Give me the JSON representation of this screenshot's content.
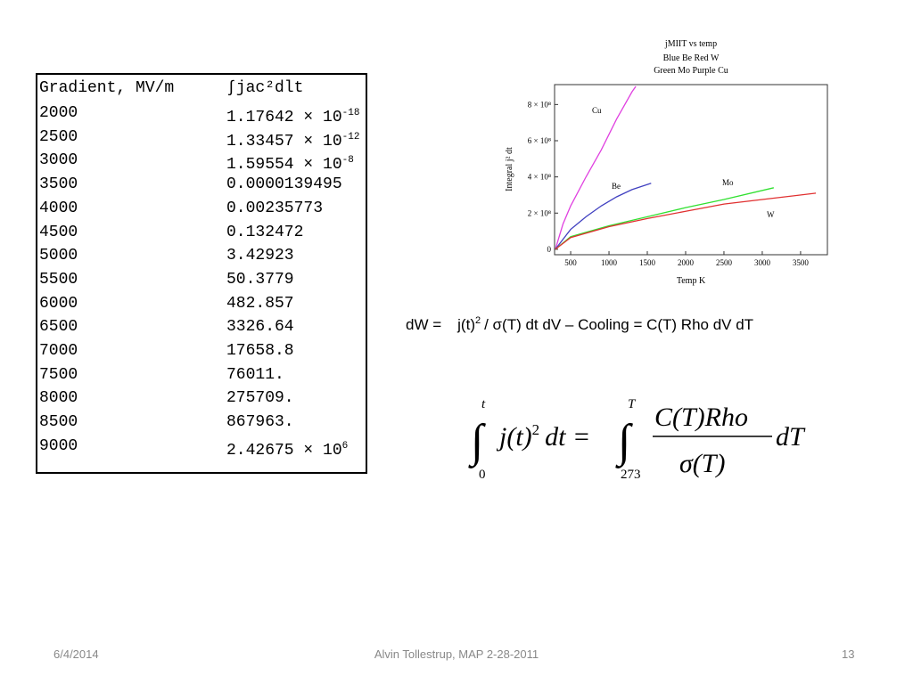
{
  "table": {
    "header": [
      "Gradient, MV/m",
      "∫jac²dlt"
    ],
    "rows": [
      [
        "2000",
        {
          "base": "1.17642 × 10",
          "exp": "-18"
        }
      ],
      [
        "2500",
        {
          "base": "1.33457 × 10",
          "exp": "-12"
        }
      ],
      [
        "3000",
        {
          "base": "1.59554 × 10",
          "exp": "-8"
        }
      ],
      [
        "3500",
        "0.0000139495"
      ],
      [
        "4000",
        "0.00235773"
      ],
      [
        "4500",
        "0.132472"
      ],
      [
        "5000",
        "3.42923"
      ],
      [
        "5500",
        "50.3779"
      ],
      [
        "6000",
        "482.857"
      ],
      [
        "6500",
        "3326.64"
      ],
      [
        "7000",
        "17658.8"
      ],
      [
        "7500",
        "76011."
      ],
      [
        "8000",
        "275709."
      ],
      [
        "8500",
        "867963."
      ],
      [
        "9000",
        {
          "base": "2.42675 × 10",
          "exp": "6"
        }
      ]
    ]
  },
  "chart_data": {
    "type": "line",
    "title": "jMIIT vs temp",
    "subtitle": [
      "Blue  Be    Red   W",
      "Green  Mo   Purple    Cu"
    ],
    "x_label": "Temp K",
    "y_label": "Integral j² dt",
    "xlim": [
      290,
      3850
    ],
    "xticks": [
      500,
      1000,
      1500,
      2000,
      2500,
      3000,
      3500
    ],
    "ylim": [
      -30000000,
      910000000
    ],
    "yticks": [
      0,
      {
        "value": 200000000,
        "label": "2 × 10⁸"
      },
      {
        "value": 400000000,
        "label": "4 × 10⁸"
      },
      {
        "value": 600000000,
        "label": "6 × 10⁸"
      },
      {
        "value": 800000000,
        "label": "8 × 10⁸"
      }
    ],
    "series": [
      {
        "name": "Cu",
        "color": "#e040e0",
        "x": [
          300,
          400,
          500,
          700,
          900,
          1100,
          1300,
          1350
        ],
        "values": [
          0,
          140000000,
          240000000,
          400000000,
          550000000,
          720000000,
          870000000,
          900000000
        ]
      },
      {
        "name": "Be",
        "color": "#4040c0",
        "x": [
          300,
          500,
          700,
          900,
          1100,
          1300,
          1550
        ],
        "values": [
          0,
          110000000,
          180000000,
          240000000,
          290000000,
          330000000,
          365000000
        ]
      },
      {
        "name": "Mo",
        "color": "#30e030",
        "x": [
          300,
          500,
          1000,
          1500,
          2000,
          2500,
          3150
        ],
        "values": [
          0,
          70000000,
          130000000,
          180000000,
          230000000,
          275000000,
          340000000
        ]
      },
      {
        "name": "W",
        "color": "#e03030",
        "x": [
          300,
          500,
          1000,
          1500,
          2000,
          2500,
          3000,
          3700
        ],
        "values": [
          0,
          65000000,
          125000000,
          170000000,
          210000000,
          250000000,
          275000000,
          310000000
        ]
      }
    ]
  },
  "equation1": {
    "lhs": "dW =",
    "j": "j(t)",
    "sup": "2",
    "rest": "/ σ(T) dt  dV – Cooling  =  C(T) Rho dV dT"
  },
  "equation2": {
    "upper1": "t",
    "lower1": "0",
    "integrand": "j(t)",
    "sup": "2",
    "dt": "dt =",
    "upper2": "T",
    "lower2": "273",
    "numerator": "C(T)Rho",
    "denominator": "σ(T)",
    "dT": "dT"
  },
  "footer": {
    "date": "6/4/2014",
    "center": "Alvin Tollestrup, MAP 2-28-2011",
    "page": "13"
  }
}
